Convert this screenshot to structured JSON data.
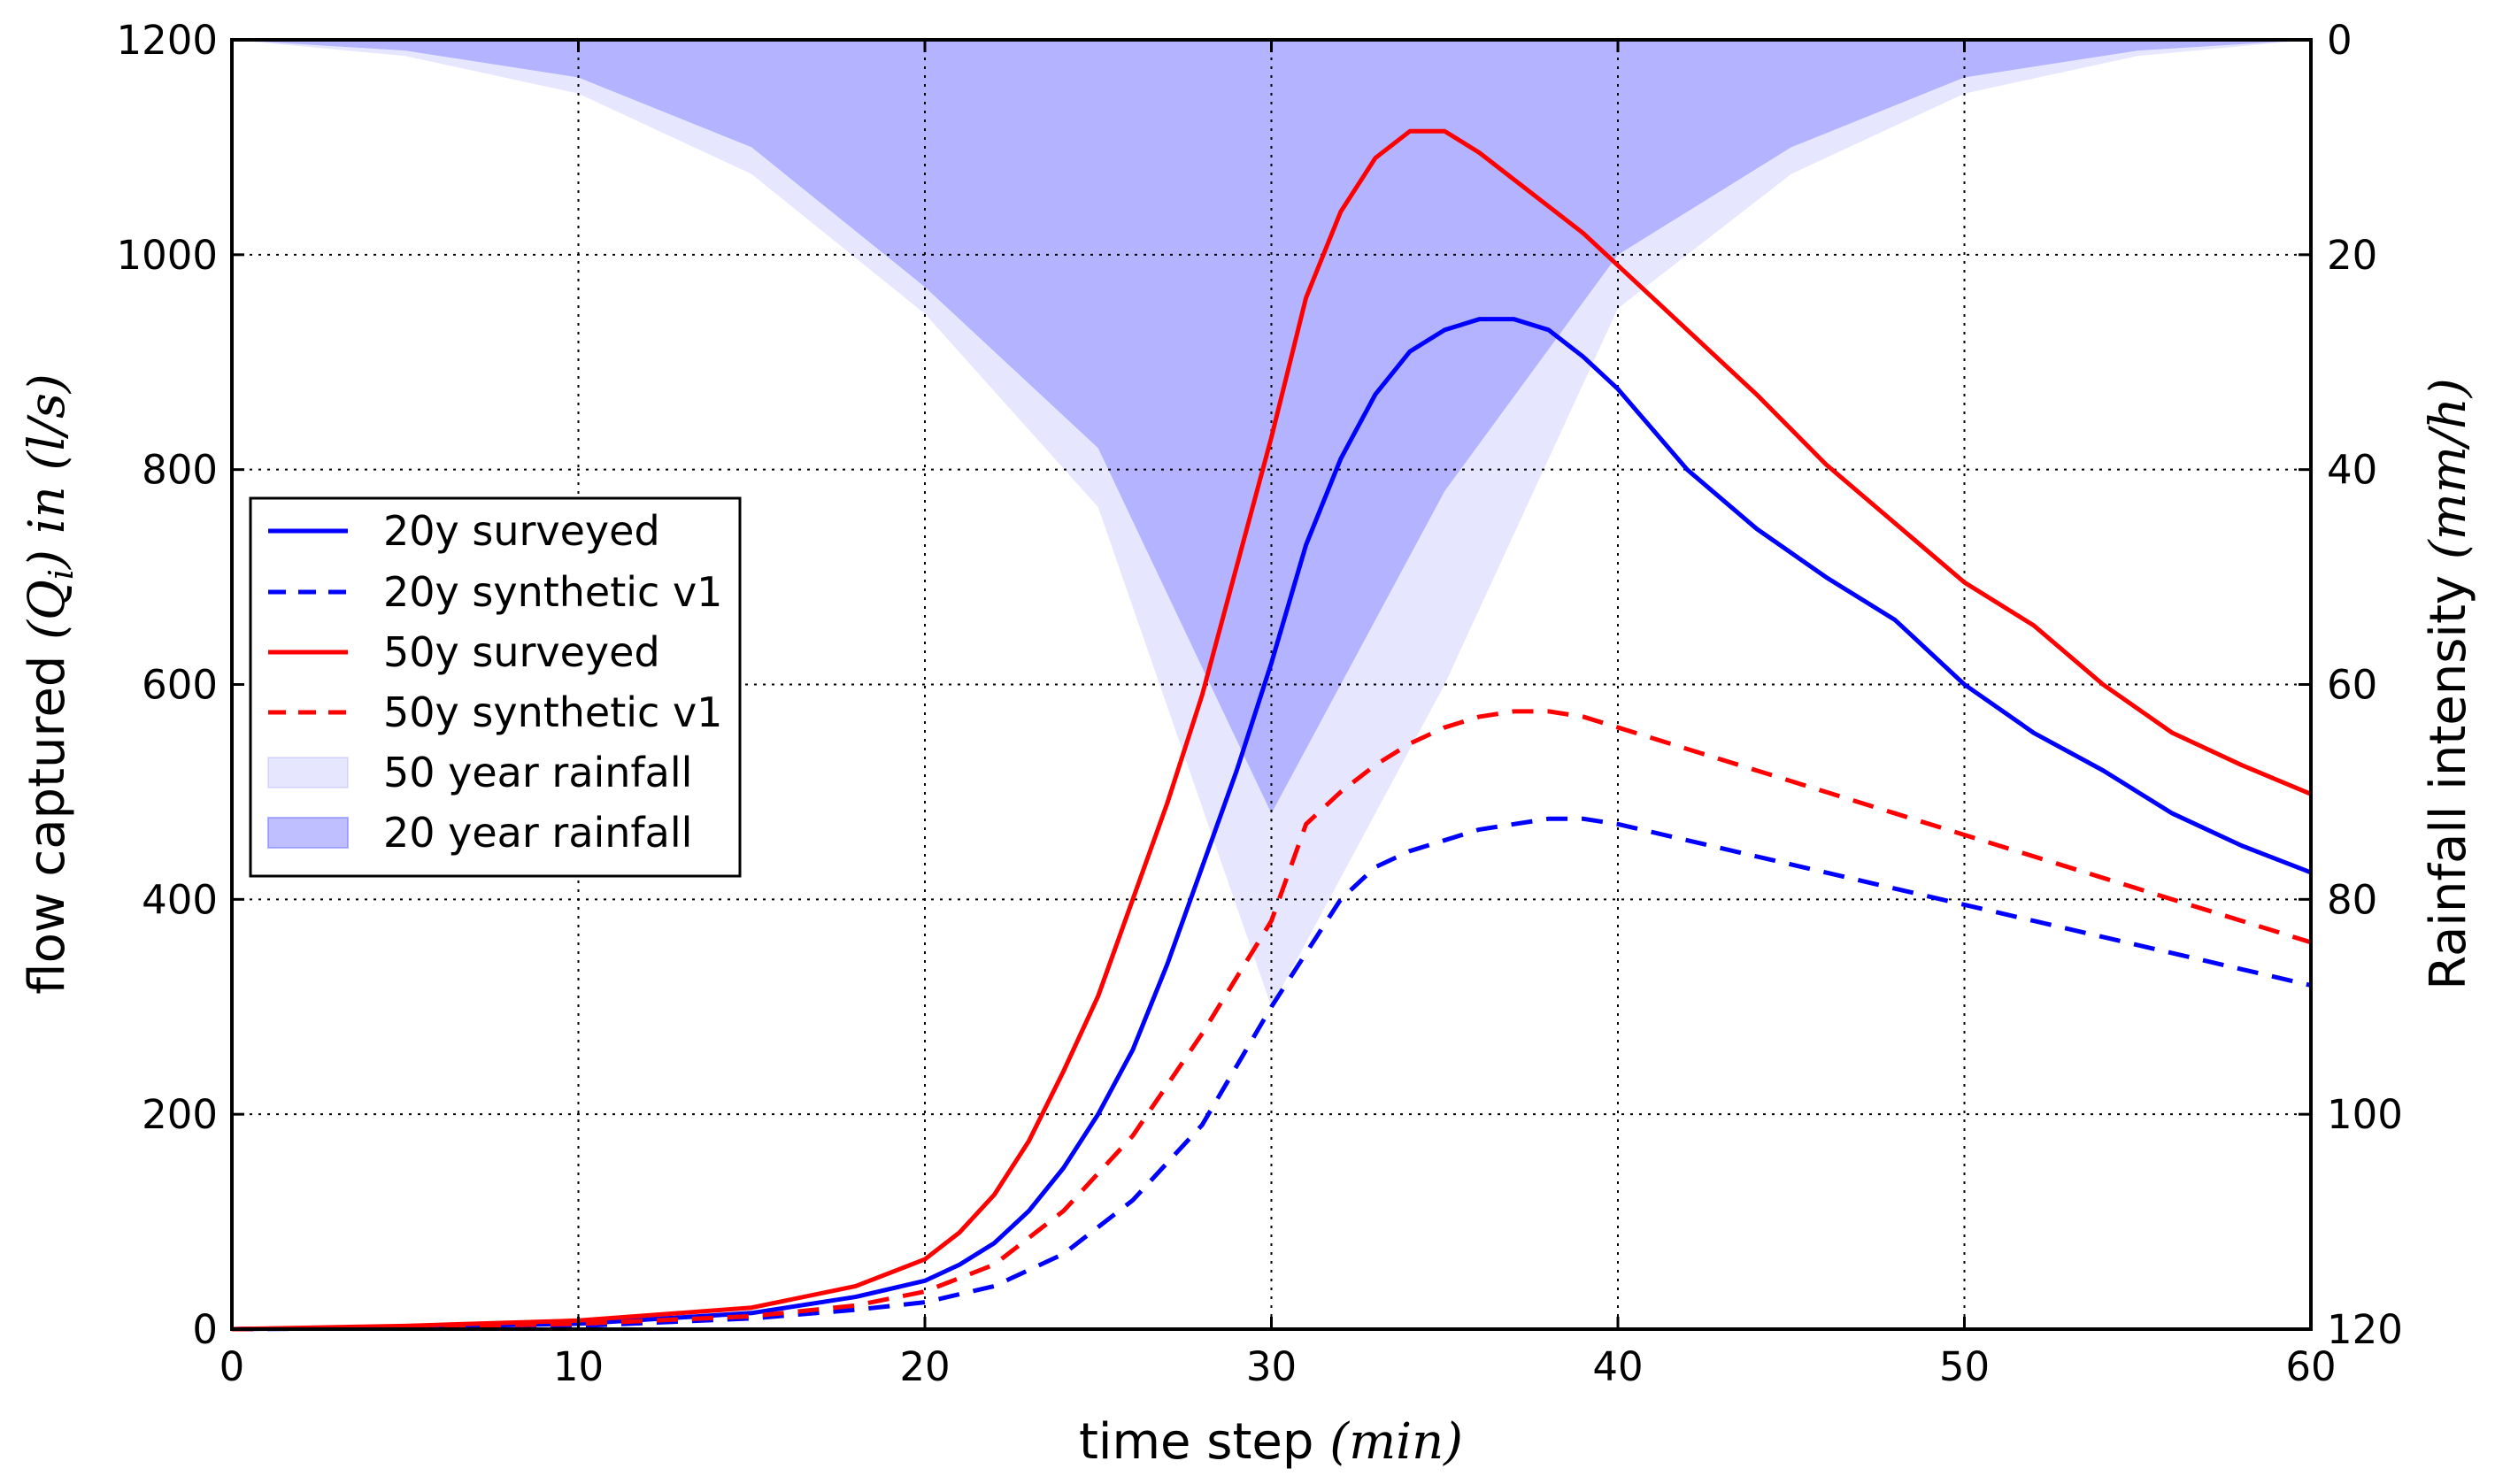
{
  "chart_data": {
    "type": "line",
    "title": "",
    "xlabel": "time step",
    "xlabel_unit": "(min)",
    "ylabel": "flow captured",
    "ylabel_symbol": "(Q",
    "ylabel_subscript": "i",
    "ylabel_in": ") in",
    "ylabel_unit": "(l/s)",
    "y2label": "Rainfall intensity",
    "y2label_unit": "(mm/h)",
    "xlim": [
      0,
      60
    ],
    "ylim": [
      0,
      1200
    ],
    "y2lim": [
      0,
      120
    ],
    "y2_inverted": true,
    "grid": true,
    "xticks": [
      "0",
      "10",
      "20",
      "30",
      "40",
      "50",
      "60"
    ],
    "yticks": [
      "0",
      "200",
      "400",
      "600",
      "800",
      "1000",
      "1200"
    ],
    "y2ticks": [
      "0",
      "20",
      "40",
      "60",
      "80",
      "100",
      "120"
    ],
    "legend_position": "center-left",
    "series": [
      {
        "name": "20y surveyed",
        "color": "#0000ff",
        "style": "solid",
        "x": [
          0,
          5,
          10,
          15,
          18,
          20,
          21,
          22,
          23,
          24,
          25,
          26,
          27,
          28,
          29,
          30,
          31,
          32,
          33,
          34,
          35,
          36,
          37,
          38,
          39,
          40,
          42,
          44,
          46,
          48,
          50,
          52,
          54,
          56,
          58,
          60
        ],
        "y": [
          0,
          2,
          5,
          15,
          30,
          45,
          60,
          80,
          110,
          150,
          200,
          260,
          340,
          430,
          520,
          620,
          730,
          810,
          870,
          910,
          930,
          940,
          940,
          930,
          905,
          875,
          800,
          745,
          700,
          660,
          600,
          555,
          520,
          480,
          450,
          425
        ]
      },
      {
        "name": "20y synthetic v1",
        "color": "#0000ff",
        "style": "dashed",
        "x": [
          0,
          5,
          10,
          15,
          18,
          20,
          22,
          24,
          26,
          28,
          30,
          31,
          32,
          33,
          34,
          35,
          36,
          37,
          38,
          39,
          40,
          42,
          44,
          46,
          48,
          50,
          52,
          54,
          56,
          58,
          60
        ],
        "y": [
          0,
          1,
          3,
          10,
          18,
          25,
          40,
          70,
          120,
          190,
          300,
          350,
          400,
          430,
          445,
          455,
          465,
          470,
          475,
          475,
          470,
          455,
          440,
          425,
          410,
          395,
          380,
          365,
          350,
          335,
          320
        ]
      },
      {
        "name": "50y surveyed",
        "color": "#ff0000",
        "style": "solid",
        "x": [
          0,
          5,
          10,
          15,
          18,
          20,
          21,
          22,
          23,
          24,
          25,
          26,
          27,
          28,
          29,
          30,
          31,
          32,
          33,
          34,
          35,
          36,
          37,
          38,
          39,
          40,
          42,
          44,
          46,
          48,
          50,
          52,
          54,
          56,
          58,
          60
        ],
        "y": [
          0,
          3,
          8,
          20,
          40,
          65,
          90,
          125,
          175,
          240,
          310,
          400,
          490,
          590,
          710,
          830,
          960,
          1040,
          1090,
          1115,
          1115,
          1095,
          1070,
          1045,
          1020,
          990,
          930,
          870,
          805,
          750,
          695,
          655,
          600,
          555,
          525,
          498
        ]
      },
      {
        "name": "50y synthetic v1",
        "color": "#ff0000",
        "style": "dashed",
        "x": [
          0,
          5,
          10,
          15,
          18,
          20,
          22,
          24,
          26,
          28,
          30,
          31,
          32,
          33,
          34,
          35,
          36,
          37,
          38,
          39,
          40,
          42,
          44,
          46,
          48,
          50,
          52,
          54,
          56,
          58,
          60
        ],
        "y": [
          0,
          2,
          5,
          12,
          22,
          35,
          60,
          110,
          180,
          275,
          380,
          470,
          500,
          525,
          545,
          560,
          570,
          575,
          575,
          570,
          560,
          540,
          520,
          500,
          480,
          460,
          440,
          420,
          400,
          380,
          360
        ]
      }
    ],
    "areas": [
      {
        "name": "50 year rainfall",
        "color": "#8080ff",
        "opacity": 0.2,
        "axis": "y2",
        "x": [
          0,
          5,
          10,
          15,
          20,
          25,
          30,
          35,
          40,
          45,
          50,
          55,
          60
        ],
        "y": [
          0,
          1.5,
          5,
          12.5,
          25.5,
          43.5,
          90,
          60,
          25,
          12.5,
          5,
          1.5,
          0
        ]
      },
      {
        "name": "20 year rainfall",
        "color": "#8080ff",
        "opacity": 0.5,
        "axis": "y2",
        "x": [
          0,
          5,
          10,
          15,
          20,
          25,
          30,
          35,
          40,
          45,
          50,
          55,
          60
        ],
        "y": [
          0,
          1,
          3.5,
          10,
          23,
          38,
          72,
          42,
          20,
          10,
          3.5,
          1,
          0
        ]
      }
    ]
  }
}
